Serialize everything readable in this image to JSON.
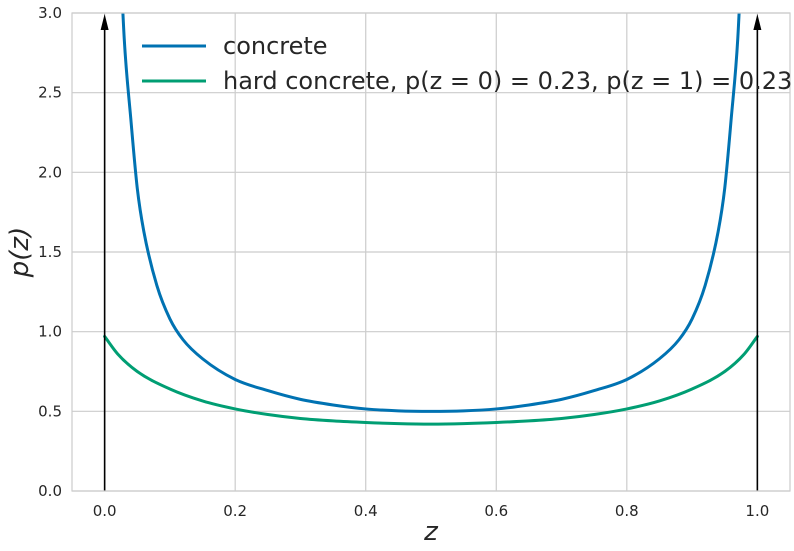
{
  "chart_data": {
    "type": "line",
    "xlabel": "z",
    "ylabel": "p(z)",
    "xlim": [
      -0.05,
      1.05
    ],
    "ylim": [
      0,
      3.0
    ],
    "xticks": [
      "0.0",
      "0.2",
      "0.4",
      "0.6",
      "0.8",
      "1.0"
    ],
    "yticks": [
      "0.0",
      "0.5",
      "1.0",
      "1.5",
      "2.0",
      "2.5",
      "3.0"
    ],
    "grid": true,
    "legend_position": "top-left",
    "series": [
      {
        "name": "concrete",
        "color": "#0072b2",
        "x": [
          0.02,
          0.03,
          0.04,
          0.05,
          0.06,
          0.08,
          0.1,
          0.12,
          0.15,
          0.2,
          0.25,
          0.3,
          0.35,
          0.4,
          0.45,
          0.5,
          0.55,
          0.6,
          0.65,
          0.7,
          0.75,
          0.8,
          0.85,
          0.88,
          0.9,
          0.92,
          0.94,
          0.95,
          0.96,
          0.97,
          0.98
        ],
        "y": [
          3.75,
          2.84,
          2.34,
          1.9,
          1.63,
          1.29,
          1.08,
          0.95,
          0.83,
          0.7,
          0.63,
          0.575,
          0.54,
          0.515,
          0.503,
          0.5,
          0.503,
          0.515,
          0.54,
          0.575,
          0.63,
          0.7,
          0.83,
          0.95,
          1.08,
          1.29,
          1.63,
          1.9,
          2.34,
          2.84,
          3.75
        ]
      },
      {
        "name": "hard concrete, p(z = 0) = 0.23, p(z = 1) = 0.23",
        "color": "#009e73",
        "x": [
          0.0,
          0.02,
          0.05,
          0.1,
          0.15,
          0.2,
          0.25,
          0.3,
          0.35,
          0.4,
          0.45,
          0.5,
          0.55,
          0.6,
          0.65,
          0.7,
          0.75,
          0.8,
          0.85,
          0.9,
          0.95,
          0.98,
          1.0
        ],
        "y": [
          0.97,
          0.86,
          0.75,
          0.64,
          0.565,
          0.515,
          0.48,
          0.455,
          0.44,
          0.43,
          0.423,
          0.42,
          0.423,
          0.43,
          0.44,
          0.455,
          0.48,
          0.515,
          0.565,
          0.64,
          0.75,
          0.86,
          0.97
        ]
      }
    ],
    "point_masses": [
      {
        "x": 0.0,
        "mass": 0.23
      },
      {
        "x": 1.0,
        "mass": 0.23
      }
    ]
  }
}
